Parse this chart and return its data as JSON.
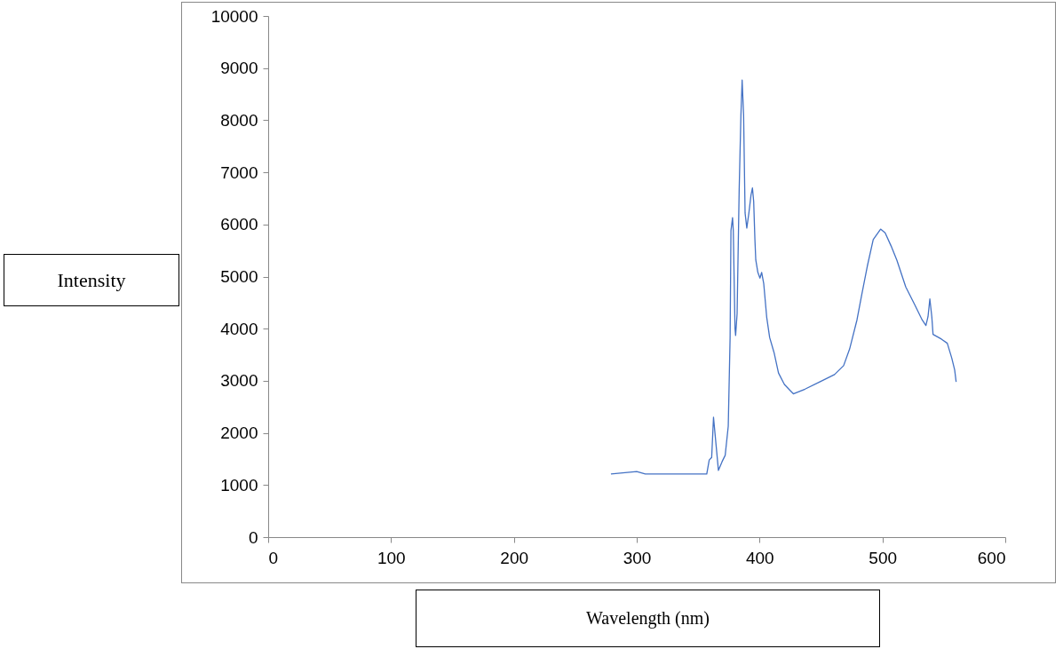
{
  "chart_data": {
    "type": "line",
    "xlabel": "Wavelength (nm)",
    "ylabel": "Intensity",
    "x": [
      279,
      300,
      307,
      357,
      359,
      361,
      362.5,
      366.5,
      369.5,
      372,
      374.5,
      376,
      376.7,
      378,
      378.6,
      380,
      380.5,
      381.7,
      383.4,
      384.8,
      385.8,
      387,
      388.2,
      389.6,
      391.3,
      393,
      394.2,
      395.2,
      396.2,
      396.9,
      398.6,
      400.3,
      401.7,
      403.4,
      405.8,
      408.2,
      411.8,
      415.4,
      420.2,
      425,
      427.5,
      437,
      449,
      461,
      468.4,
      473.3,
      479.3,
      483,
      487.7,
      492.5,
      498.5,
      502.2,
      507,
      511.8,
      519,
      526.3,
      532.3,
      535.4,
      537.1,
      538.6,
      540.2,
      541.2,
      548,
      552.8,
      556.4,
      558.8,
      560
    ],
    "series": [
      {
        "color": "#4472c4",
        "values": [
          1210,
          1260,
          1210,
          1210,
          1480,
          1530,
          2300,
          1280,
          1450,
          1570,
          2130,
          3830,
          5880,
          6130,
          5880,
          4000,
          3870,
          4290,
          6680,
          8090,
          8770,
          8090,
          6220,
          5930,
          6220,
          6560,
          6700,
          6440,
          5710,
          5320,
          5080,
          4970,
          5080,
          4860,
          4220,
          3830,
          3540,
          3150,
          2930,
          2810,
          2750,
          2840,
          2980,
          3120,
          3290,
          3610,
          4170,
          4630,
          5200,
          5710,
          5910,
          5840,
          5590,
          5310,
          4800,
          4460,
          4170,
          4060,
          4230,
          4570,
          4230,
          3890,
          3800,
          3720,
          3440,
          3210,
          2980
        ]
      }
    ],
    "xlim": [
      0,
      600
    ],
    "xticks": [
      0,
      100,
      200,
      300,
      400,
      500,
      600
    ],
    "ylim": [
      0,
      10000
    ],
    "yticks": [
      0,
      1000,
      2000,
      3000,
      4000,
      5000,
      6000,
      7000,
      8000,
      9000,
      10000
    ],
    "grid": false,
    "marker": "none",
    "line_style": "solid"
  }
}
